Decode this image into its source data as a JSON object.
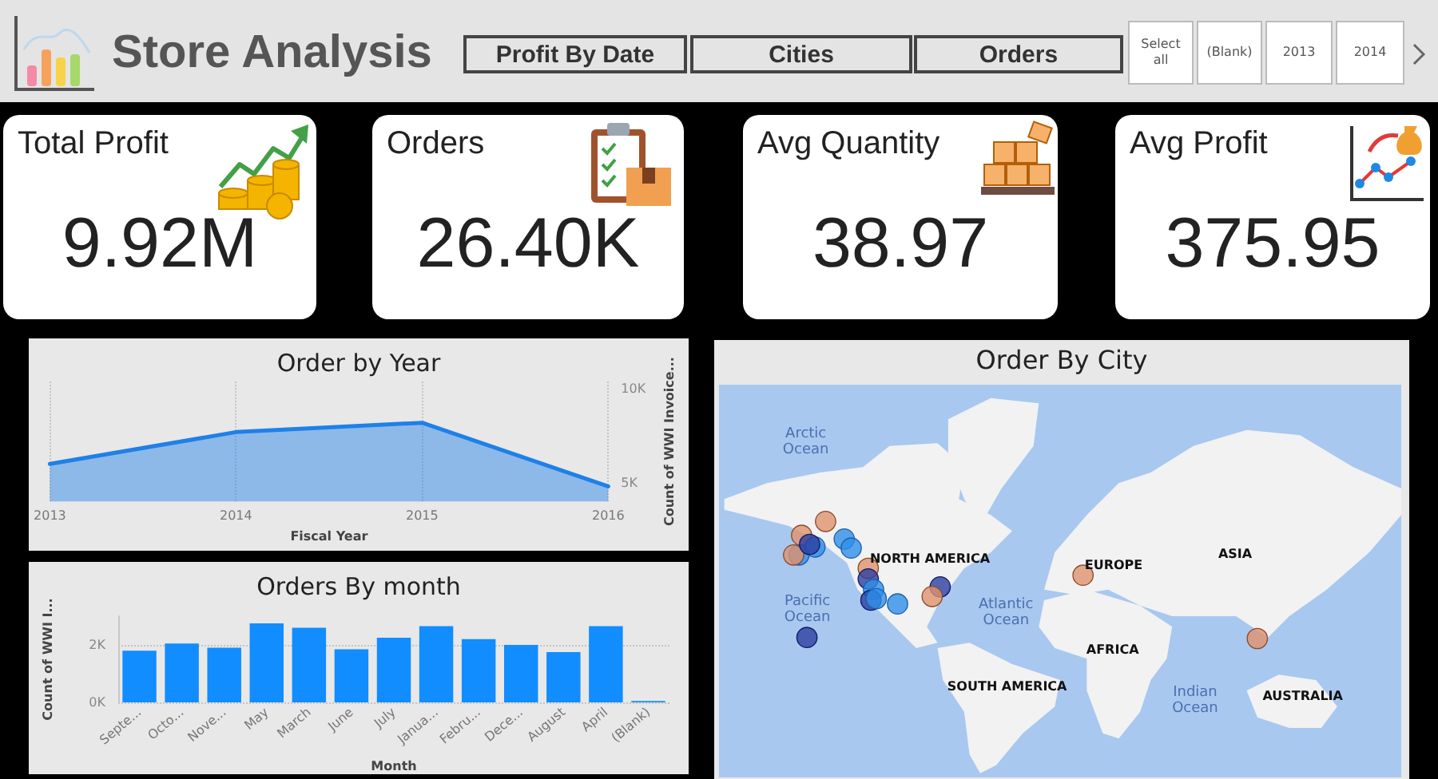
{
  "chart_data": [
    {
      "type": "other",
      "title": "Store Analysis",
      "annotations": [
        "Profit By Date",
        "Cities",
        "Orders",
        "Select all",
        "(Blank)",
        "2013",
        "2014"
      ]
    },
    {
      "type": "other",
      "title": "Total Profit",
      "annotations": [
        "9.92M"
      ]
    },
    {
      "type": "other",
      "title": "Orders",
      "annotations": [
        "26.40K"
      ]
    },
    {
      "type": "other",
      "title": "Avg Quantity",
      "annotations": [
        "38.97"
      ]
    },
    {
      "type": "other",
      "title": "Avg Profit",
      "annotations": [
        "375.95"
      ]
    },
    {
      "type": "area",
      "title": "Order by Year",
      "categories": [
        "2013",
        "2014",
        "2015",
        "2016"
      ],
      "values": [
        6000,
        7700,
        8200,
        4800
      ],
      "color": "#1f80e8",
      "xlabel": "Fiscal Year",
      "ylabel": "Count of WWI Invoice...",
      "ylim": [
        4000,
        10400
      ],
      "yticks": [
        {
          "value": 5000,
          "label": "5K"
        },
        {
          "value": 10000,
          "label": "10K"
        }
      ],
      "grid": "x"
    },
    {
      "type": "bar",
      "title": "Orders By month",
      "categories": [
        "Septe...",
        "Octo...",
        "Nove...",
        "May",
        "March",
        "June",
        "July",
        "Janua...",
        "Febru...",
        "Dece...",
        "August",
        "April",
        "(Blank)"
      ],
      "values": [
        1800,
        2050,
        1900,
        2750,
        2600,
        1850,
        2250,
        2650,
        2200,
        2000,
        1750,
        2650,
        50
      ],
      "color": "#118dff",
      "xlabel": "Month",
      "ylabel": "Count of WWI I...",
      "ylim": [
        0,
        3000
      ],
      "yticks": [
        {
          "value": 0,
          "label": "0K"
        },
        {
          "value": 2000,
          "label": "2K"
        }
      ],
      "grid": "y"
    },
    {
      "type": "other",
      "title": "Order By City",
      "annotations": [
        "Arctic Ocean",
        "NORTH AMERICA",
        "Pacific Ocean",
        "Atlantic Ocean",
        "EUROPE",
        "ASIA",
        "AFRICA",
        "SOUTH AMERICA",
        "Indian Ocean",
        "AUSTRALIA"
      ]
    }
  ]
}
